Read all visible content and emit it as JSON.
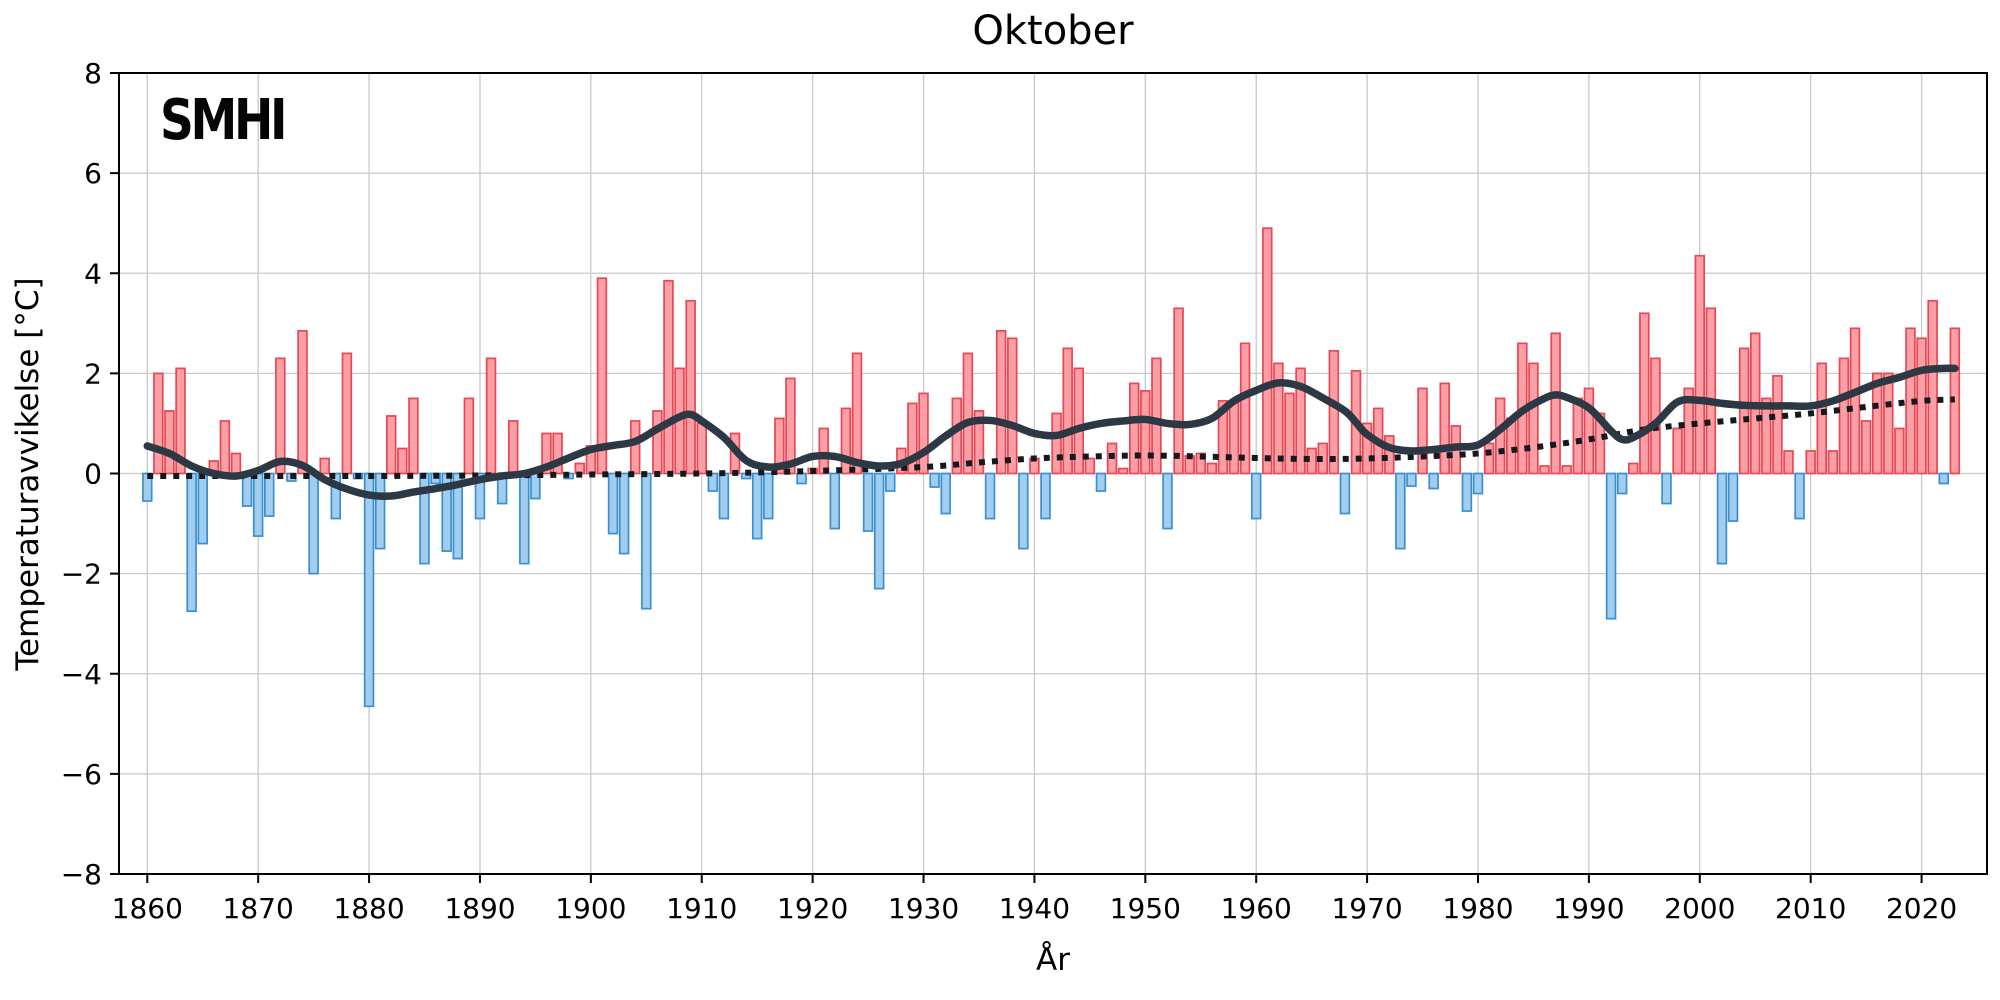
{
  "header": {
    "title": "Oktober",
    "logo_text": "SMHI"
  },
  "axes": {
    "x_label": "År",
    "y_label": "Temperaturavvikelse [°C]",
    "xlim": [
      1857.45,
      2025.9
    ],
    "ylim": [
      -8,
      8
    ],
    "x_ticks": [
      1860,
      1870,
      1880,
      1890,
      1900,
      1910,
      1920,
      1930,
      1940,
      1950,
      1960,
      1970,
      1980,
      1990,
      2000,
      2010,
      2020
    ],
    "y_ticks": [
      8,
      6,
      4,
      2,
      0,
      -2,
      -4,
      -6,
      -8
    ],
    "grid": true
  },
  "colors": {
    "background": "#ffffff",
    "positive_bar_fill": "#F99FA5",
    "positive_bar_edge": "#EA4653",
    "negative_bar_fill": "#A3CDEE",
    "negative_bar_edge": "#3890D0",
    "smoothed_line": "#2C3844",
    "trend_dotted_line": "#15191E",
    "gridline": "#C9C9C9",
    "frame": "#000000"
  },
  "chart_data": {
    "type": "bar",
    "title": "Oktober",
    "xlabel": "År",
    "ylabel": "Temperaturavvikelse [°C]",
    "ylim": [
      -8,
      8
    ],
    "xlim": [
      1857.45,
      2025.9
    ],
    "legend_position": "none",
    "grid": true,
    "categories": [
      1860,
      1861,
      1862,
      1863,
      1864,
      1865,
      1866,
      1867,
      1868,
      1869,
      1870,
      1871,
      1872,
      1873,
      1874,
      1875,
      1876,
      1877,
      1878,
      1879,
      1880,
      1881,
      1882,
      1883,
      1884,
      1885,
      1886,
      1887,
      1888,
      1889,
      1890,
      1891,
      1892,
      1893,
      1894,
      1895,
      1896,
      1897,
      1898,
      1899,
      1900,
      1901,
      1902,
      1903,
      1904,
      1905,
      1906,
      1907,
      1908,
      1909,
      1910,
      1911,
      1912,
      1913,
      1914,
      1915,
      1916,
      1917,
      1918,
      1919,
      1920,
      1921,
      1922,
      1923,
      1924,
      1925,
      1926,
      1927,
      1928,
      1929,
      1930,
      1931,
      1932,
      1933,
      1934,
      1935,
      1936,
      1937,
      1938,
      1939,
      1940,
      1941,
      1942,
      1943,
      1944,
      1945,
      1946,
      1947,
      1948,
      1949,
      1950,
      1951,
      1952,
      1953,
      1954,
      1955,
      1956,
      1957,
      1958,
      1959,
      1960,
      1961,
      1962,
      1963,
      1964,
      1965,
      1966,
      1967,
      1968,
      1969,
      1970,
      1971,
      1972,
      1973,
      1974,
      1975,
      1976,
      1977,
      1978,
      1979,
      1980,
      1981,
      1982,
      1983,
      1984,
      1985,
      1986,
      1987,
      1988,
      1989,
      1990,
      1991,
      1992,
      1993,
      1994,
      1995,
      1996,
      1997,
      1998,
      1999,
      2000,
      2001,
      2002,
      2003,
      2004,
      2005,
      2006,
      2007,
      2008,
      2009,
      2010,
      2011,
      2012,
      2013,
      2014,
      2015,
      2016,
      2017,
      2018,
      2019,
      2020,
      2021,
      2022,
      2023
    ],
    "values": [
      -0.55,
      2.0,
      1.25,
      2.1,
      -2.75,
      -1.4,
      0.25,
      1.05,
      0.4,
      -0.65,
      -1.25,
      -0.85,
      2.3,
      -0.15,
      2.85,
      -2.0,
      0.3,
      -0.9,
      2.4,
      -0.1,
      -4.65,
      -1.5,
      1.15,
      0.5,
      1.5,
      -1.8,
      -0.2,
      -1.55,
      -1.7,
      1.5,
      -0.9,
      2.3,
      -0.6,
      1.05,
      -1.8,
      -0.5,
      0.8,
      0.8,
      -0.1,
      0.2,
      0.55,
      3.9,
      -1.2,
      -1.6,
      1.05,
      -2.7,
      1.25,
      3.85,
      2.1,
      3.45,
      1.0,
      -0.35,
      -0.9,
      0.8,
      -0.1,
      -1.3,
      -0.9,
      1.1,
      1.9,
      -0.2,
      0.1,
      0.9,
      -1.1,
      1.3,
      2.4,
      -1.15,
      -2.3,
      -0.35,
      0.5,
      1.4,
      1.6,
      -0.27,
      -0.8,
      1.5,
      2.4,
      1.25,
      -0.9,
      2.85,
      2.7,
      -1.5,
      0.3,
      -0.9,
      1.2,
      2.5,
      2.1,
      0.3,
      -0.35,
      0.6,
      0.1,
      1.8,
      1.65,
      2.3,
      -1.1,
      3.3,
      0.35,
      0.4,
      0.2,
      1.45,
      1.45,
      2.6,
      -0.9,
      4.9,
      2.2,
      1.6,
      2.1,
      0.5,
      0.6,
      2.45,
      -0.8,
      2.05,
      1.0,
      1.3,
      0.75,
      -1.5,
      -0.25,
      1.7,
      -0.3,
      1.8,
      0.95,
      -0.75,
      -0.4,
      0.6,
      1.5,
      1.1,
      2.6,
      2.2,
      0.15,
      2.8,
      0.15,
      1.5,
      1.7,
      1.2,
      -2.9,
      -0.4,
      0.2,
      3.2,
      2.3,
      -0.6,
      0.9,
      1.7,
      4.35,
      3.3,
      -1.8,
      -0.95,
      2.5,
      2.8,
      1.5,
      1.95,
      0.45,
      -0.9,
      0.45,
      2.2,
      0.45,
      2.3,
      2.9,
      1.05,
      2.0,
      2.0,
      0.9,
      2.9,
      2.7,
      3.45,
      -0.2,
      2.9
    ],
    "series": [
      {
        "name": "smoothed-curve",
        "type": "line",
        "points": [
          [
            1860,
            0.55
          ],
          [
            1862,
            0.4
          ],
          [
            1864,
            0.15
          ],
          [
            1866,
            0.0
          ],
          [
            1868,
            -0.05
          ],
          [
            1870,
            0.06
          ],
          [
            1872,
            0.24
          ],
          [
            1874,
            0.16
          ],
          [
            1876,
            -0.12
          ],
          [
            1878,
            -0.31
          ],
          [
            1880,
            -0.43
          ],
          [
            1882,
            -0.45
          ],
          [
            1884,
            -0.37
          ],
          [
            1886,
            -0.3
          ],
          [
            1888,
            -0.22
          ],
          [
            1890,
            -0.12
          ],
          [
            1892,
            -0.05
          ],
          [
            1894,
            0.0
          ],
          [
            1896,
            0.13
          ],
          [
            1898,
            0.31
          ],
          [
            1900,
            0.48
          ],
          [
            1902,
            0.56
          ],
          [
            1904,
            0.64
          ],
          [
            1906,
            0.89
          ],
          [
            1908,
            1.13
          ],
          [
            1909,
            1.18
          ],
          [
            1910,
            1.05
          ],
          [
            1912,
            0.72
          ],
          [
            1914,
            0.26
          ],
          [
            1916,
            0.13
          ],
          [
            1918,
            0.19
          ],
          [
            1920,
            0.34
          ],
          [
            1922,
            0.34
          ],
          [
            1924,
            0.22
          ],
          [
            1926,
            0.15
          ],
          [
            1928,
            0.2
          ],
          [
            1930,
            0.42
          ],
          [
            1932,
            0.75
          ],
          [
            1934,
            1.02
          ],
          [
            1936,
            1.06
          ],
          [
            1938,
            0.96
          ],
          [
            1940,
            0.8
          ],
          [
            1942,
            0.76
          ],
          [
            1944,
            0.9
          ],
          [
            1946,
            1.0
          ],
          [
            1948,
            1.05
          ],
          [
            1950,
            1.08
          ],
          [
            1952,
            1.0
          ],
          [
            1954,
            0.98
          ],
          [
            1956,
            1.1
          ],
          [
            1958,
            1.45
          ],
          [
            1960,
            1.66
          ],
          [
            1962,
            1.81
          ],
          [
            1964,
            1.74
          ],
          [
            1966,
            1.51
          ],
          [
            1968,
            1.25
          ],
          [
            1969,
            1.02
          ],
          [
            1970,
            0.78
          ],
          [
            1972,
            0.52
          ],
          [
            1974,
            0.45
          ],
          [
            1976,
            0.48
          ],
          [
            1978,
            0.53
          ],
          [
            1980,
            0.57
          ],
          [
            1982,
            0.88
          ],
          [
            1984,
            1.25
          ],
          [
            1986,
            1.5
          ],
          [
            1987,
            1.57
          ],
          [
            1988,
            1.52
          ],
          [
            1990,
            1.31
          ],
          [
            1992,
            0.85
          ],
          [
            1993,
            0.68
          ],
          [
            1994,
            0.72
          ],
          [
            1996,
            1.0
          ],
          [
            1998,
            1.43
          ],
          [
            2000,
            1.46
          ],
          [
            2002,
            1.4
          ],
          [
            2004,
            1.36
          ],
          [
            2006,
            1.35
          ],
          [
            2008,
            1.35
          ],
          [
            2010,
            1.35
          ],
          [
            2012,
            1.45
          ],
          [
            2014,
            1.62
          ],
          [
            2016,
            1.8
          ],
          [
            2018,
            1.92
          ],
          [
            2020,
            2.06
          ],
          [
            2022,
            2.1
          ],
          [
            2023,
            2.1
          ]
        ]
      },
      {
        "name": "trend-dotted",
        "type": "dotted-line",
        "points": [
          [
            1860,
            -0.05
          ],
          [
            1870,
            -0.05
          ],
          [
            1880,
            -0.05
          ],
          [
            1890,
            -0.04
          ],
          [
            1900,
            -0.02
          ],
          [
            1910,
            0.0
          ],
          [
            1920,
            0.05
          ],
          [
            1930,
            0.13
          ],
          [
            1935,
            0.22
          ],
          [
            1940,
            0.3
          ],
          [
            1945,
            0.34
          ],
          [
            1950,
            0.36
          ],
          [
            1955,
            0.34
          ],
          [
            1960,
            0.31
          ],
          [
            1965,
            0.29
          ],
          [
            1970,
            0.3
          ],
          [
            1975,
            0.34
          ],
          [
            1980,
            0.4
          ],
          [
            1985,
            0.52
          ],
          [
            1990,
            0.68
          ],
          [
            1995,
            0.88
          ],
          [
            2000,
            1.0
          ],
          [
            2005,
            1.1
          ],
          [
            2010,
            1.2
          ],
          [
            2015,
            1.33
          ],
          [
            2020,
            1.45
          ],
          [
            2023,
            1.48
          ]
        ]
      }
    ]
  }
}
